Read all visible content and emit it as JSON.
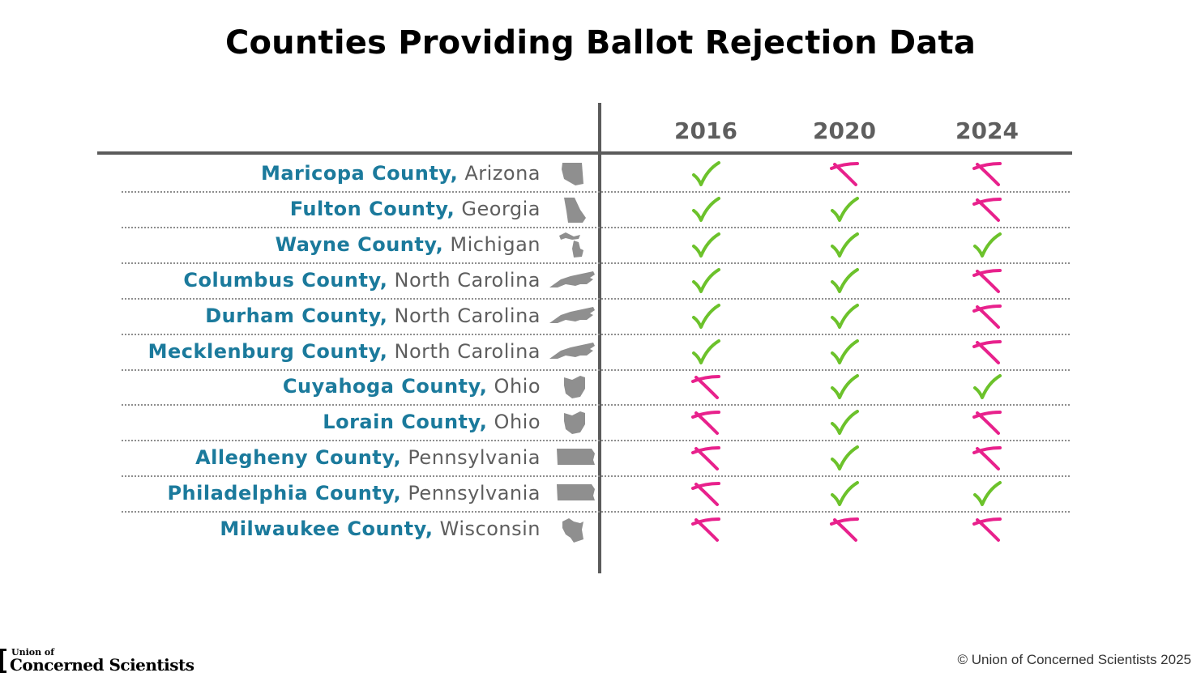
{
  "title": "Counties Providing Ballot Rejection Data",
  "chart_data": {
    "type": "table",
    "title": "Counties Providing Ballot Rejection Data",
    "columns": [
      "2016",
      "2020",
      "2024"
    ],
    "rows": [
      {
        "county": "Maricopa County,",
        "state": "Arizona",
        "state_icon": "arizona-icon",
        "values": [
          true,
          false,
          false
        ]
      },
      {
        "county": "Fulton County,",
        "state": "Georgia",
        "state_icon": "georgia-icon",
        "values": [
          true,
          true,
          false
        ]
      },
      {
        "county": "Wayne County,",
        "state": "Michigan",
        "state_icon": "michigan-icon",
        "values": [
          true,
          true,
          true
        ]
      },
      {
        "county": "Columbus County,",
        "state": "North Carolina",
        "state_icon": "north-carolina-icon",
        "values": [
          true,
          true,
          false
        ]
      },
      {
        "county": "Durham County,",
        "state": "North Carolina",
        "state_icon": "north-carolina-icon",
        "values": [
          true,
          true,
          false
        ]
      },
      {
        "county": "Mecklenburg County,",
        "state": "North Carolina",
        "state_icon": "north-carolina-icon",
        "values": [
          true,
          true,
          false
        ]
      },
      {
        "county": "Cuyahoga County,",
        "state": "Ohio",
        "state_icon": "ohio-icon",
        "values": [
          false,
          true,
          true
        ]
      },
      {
        "county": "Lorain County,",
        "state": "Ohio",
        "state_icon": "ohio-icon",
        "values": [
          false,
          true,
          false
        ]
      },
      {
        "county": "Allegheny County,",
        "state": "Pennsylvania",
        "state_icon": "pennsylvania-icon",
        "values": [
          false,
          true,
          false
        ]
      },
      {
        "county": "Philadelphia County,",
        "state": "Pennsylvania",
        "state_icon": "pennsylvania-icon",
        "values": [
          false,
          true,
          true
        ]
      },
      {
        "county": "Milwaukee County,",
        "state": "Wisconsin",
        "state_icon": "wisconsin-icon",
        "values": [
          false,
          false,
          false
        ]
      }
    ],
    "legend": {
      "true": "check-icon",
      "false": "x-icon"
    }
  },
  "colors": {
    "county": "#1b7a9c",
    "state": "#5e5e5e",
    "check": "#6cc22b",
    "x": "#e8218c",
    "rule": "#5b5b5b",
    "state_shape": "#8f8f8f"
  },
  "footer": {
    "logo_line1": "Union of",
    "logo_line2": "Concerned Scientists",
    "copyright": "© Union of Concerned Scientists 2025"
  }
}
